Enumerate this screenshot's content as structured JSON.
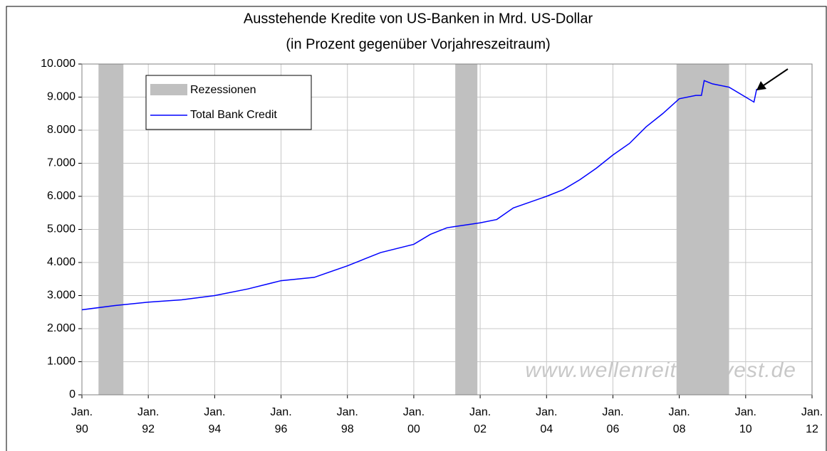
{
  "chart_data": {
    "type": "line",
    "title": "Ausstehende Kredite von US-Banken in Mrd. US-Dollar",
    "subtitle": "(in Prozent gegenüber Vorjahreszeitraum)",
    "watermark": "www.wellenreiter-invest.de",
    "xlim": [
      "1990-01",
      "2012-01"
    ],
    "xticks": [
      {
        "value": "1990-01",
        "label": "Jan. 90"
      },
      {
        "value": "1992-01",
        "label": "Jan. 92"
      },
      {
        "value": "1994-01",
        "label": "Jan. 94"
      },
      {
        "value": "1996-01",
        "label": "Jan. 96"
      },
      {
        "value": "1998-01",
        "label": "Jan. 98"
      },
      {
        "value": "2000-01",
        "label": "Jan. 00"
      },
      {
        "value": "2002-01",
        "label": "Jan. 02"
      },
      {
        "value": "2004-01",
        "label": "Jan. 04"
      },
      {
        "value": "2006-01",
        "label": "Jan. 06"
      },
      {
        "value": "2008-01",
        "label": "Jan. 08"
      },
      {
        "value": "2010-01",
        "label": "Jan. 10"
      },
      {
        "value": "2012-01",
        "label": "Jan. 12"
      }
    ],
    "ylim": [
      0,
      10000
    ],
    "yticks": [
      0,
      {
        "value": 1000,
        "label": "1.000"
      },
      {
        "value": 2000,
        "label": "2.000"
      },
      {
        "value": 3000,
        "label": "3.000"
      },
      {
        "value": 4000,
        "label": "4.000"
      },
      {
        "value": 5000,
        "label": "5.000"
      },
      {
        "value": 6000,
        "label": "6.000"
      },
      {
        "value": 7000,
        "label": "7.000"
      },
      {
        "value": 8000,
        "label": "8.000"
      },
      {
        "value": 9000,
        "label": "9.000"
      },
      {
        "value": 10000,
        "label": "10.000"
      }
    ],
    "grid": true,
    "legend": "top-left",
    "shading": {
      "name": "Rezessionen",
      "color": "#c0c0c0",
      "ranges": [
        [
          "1990-07",
          "1991-04"
        ],
        [
          "2001-04",
          "2001-12"
        ],
        [
          "2007-12",
          "2009-07"
        ]
      ]
    },
    "series": [
      {
        "name": "Total Bank Credit",
        "color": "#0000ff",
        "x": [
          "1990-01",
          "1991-01",
          "1992-01",
          "1993-01",
          "1994-01",
          "1995-01",
          "1996-01",
          "1997-01",
          "1998-01",
          "1998-07",
          "1999-01",
          "2000-01",
          "2000-07",
          "2001-01",
          "2002-01",
          "2002-07",
          "2003-01",
          "2004-01",
          "2004-07",
          "2005-01",
          "2005-07",
          "2006-01",
          "2006-07",
          "2007-01",
          "2007-07",
          "2008-01",
          "2008-07",
          "2008-09",
          "2008-10",
          "2009-01",
          "2009-07",
          "2010-01",
          "2010-04",
          "2010-05"
        ],
        "values": [
          2570,
          2700,
          2800,
          2870,
          3000,
          3200,
          3450,
          3550,
          3900,
          4100,
          4300,
          4550,
          4850,
          5050,
          5200,
          5300,
          5650,
          6000,
          6200,
          6500,
          6850,
          7250,
          7600,
          8100,
          8500,
          8950,
          9050,
          9050,
          9500,
          9400,
          9300,
          9000,
          8850,
          9250
        ]
      }
    ]
  }
}
